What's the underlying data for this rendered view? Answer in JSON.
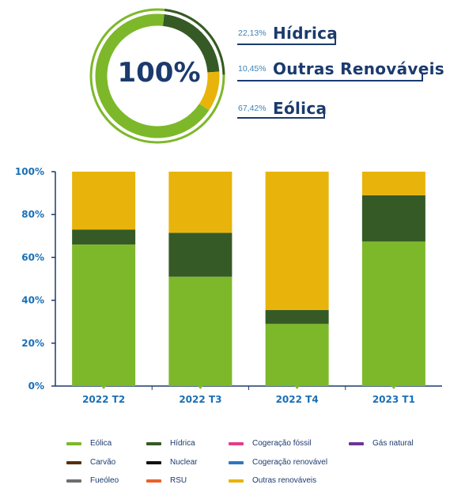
{
  "summary": {
    "total_label": "100%",
    "items": [
      {
        "pct": "22,13%",
        "name": "Hídrica"
      },
      {
        "pct": "10,45%",
        "name": "Outras Renováveis"
      },
      {
        "pct": "67,42%",
        "name": "Eólica"
      }
    ],
    "donut": [
      {
        "name": "Hídrica",
        "value": 22.13,
        "color": "#355a26"
      },
      {
        "name": "Outras Renováveis",
        "value": 10.45,
        "color": "#e8b40b"
      },
      {
        "name": "Eólica",
        "value": 67.42,
        "color": "#7db82b"
      }
    ]
  },
  "chart_data": {
    "type": "bar",
    "stacked": true,
    "categories": [
      "2022 T2",
      "2022 T3",
      "2022 T4",
      "2023 T1"
    ],
    "series": [
      {
        "name": "Eólica",
        "color": "#7db82b",
        "values": [
          66,
          51,
          29,
          67.4
        ]
      },
      {
        "name": "Hídrica",
        "color": "#355a26",
        "values": [
          7,
          20.5,
          6.5,
          21.6
        ]
      },
      {
        "name": "Outras renováveis",
        "color": "#e8b40b",
        "values": [
          27,
          28.5,
          64.5,
          11
        ]
      }
    ],
    "ylim": [
      0,
      100
    ],
    "yticks": [
      "0%",
      "20%",
      "40%",
      "60%",
      "80%",
      "100%"
    ],
    "grid": false,
    "legend_position": "bottom"
  },
  "legend": [
    {
      "label": "Eólica",
      "color": "#7db82b"
    },
    {
      "label": "Hídrica",
      "color": "#355a26"
    },
    {
      "label": "Cogeração fóssil",
      "color": "#e33e8a"
    },
    {
      "label": "Gás natural",
      "color": "#6c3596"
    },
    {
      "label": "Carvão",
      "color": "#5a2d0c"
    },
    {
      "label": "Nuclear",
      "color": "#111111"
    },
    {
      "label": "Cogeração renovável",
      "color": "#2f77c1"
    },
    {
      "label": "Fueóleo",
      "color": "#6e6e6e"
    },
    {
      "label": "RSU",
      "color": "#e9622b"
    },
    {
      "label": "Outras renováveis",
      "color": "#e8b40b"
    }
  ]
}
